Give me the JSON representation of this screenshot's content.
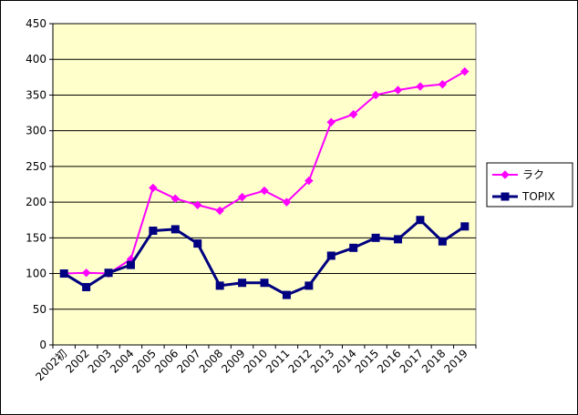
{
  "chart_data": {
    "type": "line",
    "title": "",
    "xlabel": "",
    "ylabel": "",
    "categories": [
      "2002初",
      "2002",
      "2003",
      "2004",
      "2005",
      "2006",
      "2007",
      "2008",
      "2009",
      "2010",
      "2011",
      "2012",
      "2013",
      "2014",
      "2015",
      "2016",
      "2017",
      "2018",
      "2019"
    ],
    "ylim": [
      0,
      450
    ],
    "yticks": [
      0,
      50,
      100,
      150,
      200,
      250,
      300,
      350,
      400,
      450
    ],
    "grid": true,
    "legend_position": "right",
    "plot_background": "#FFFFCC",
    "series": [
      {
        "name": "ラク",
        "color": "#FF00FF",
        "marker": "diamond",
        "values": [
          100,
          101,
          100,
          120,
          220,
          205,
          196,
          188,
          207,
          216,
          200,
          230,
          312,
          323,
          350,
          357,
          362,
          365,
          383
        ]
      },
      {
        "name": "TOPIX",
        "color": "#000080",
        "marker": "square",
        "values": [
          100,
          81,
          101,
          112,
          160,
          162,
          142,
          83,
          87,
          87,
          70,
          83,
          125,
          136,
          150,
          148,
          175,
          145,
          166
        ]
      }
    ]
  }
}
